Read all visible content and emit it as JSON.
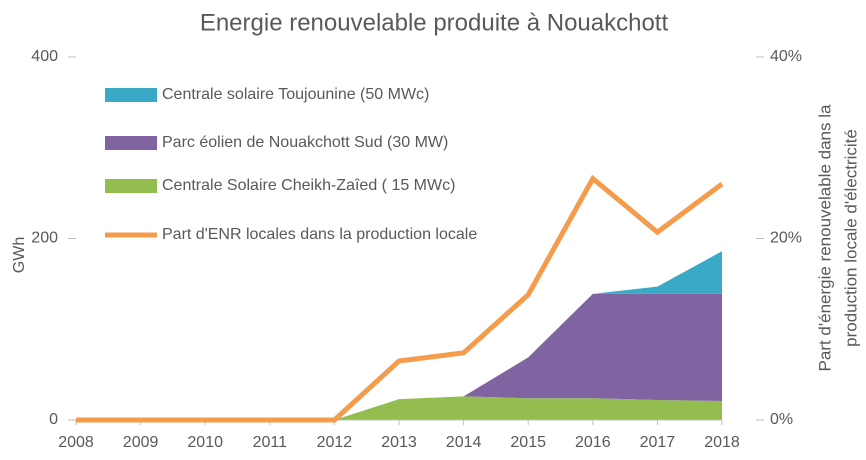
{
  "chart_data": {
    "type": "stacked_area_line",
    "title": "Energie renouvelable produite à Nouakchott",
    "ylabel": "GWh",
    "y2label": [
      "Part d'énergie renouvelable dans la",
      "production locale d'électricité"
    ],
    "x": [
      2008,
      2009,
      2010,
      2011,
      2012,
      2013,
      2014,
      2015,
      2016,
      2017,
      2018
    ],
    "xlim": [
      2008,
      2018
    ],
    "xticks": [
      2008,
      2009,
      2010,
      2011,
      2012,
      2013,
      2014,
      2015,
      2016,
      2017,
      2018
    ],
    "ylim": [
      0,
      400
    ],
    "yticks": [
      0,
      200,
      400
    ],
    "y2lim": [
      0,
      40
    ],
    "y2ticks": [
      {
        "value": 0,
        "label": "0%"
      },
      {
        "value": 20,
        "label": "20%"
      },
      {
        "value": 40,
        "label": "40%"
      }
    ],
    "series": [
      {
        "name": "Centrale solaire Toujounine (50 MWc)",
        "color": "#3aa9c6",
        "kind": "area",
        "values": [
          0,
          0,
          0,
          0,
          0,
          0,
          0,
          0,
          0,
          8,
          47
        ]
      },
      {
        "name": "Parc éolien de Nouakchott Sud  (30 MW)",
        "color": "#8064a2",
        "kind": "area",
        "values": [
          0,
          0,
          0,
          0,
          0,
          0,
          0,
          45,
          115,
          117,
          118
        ]
      },
      {
        "name": "Centrale Solaire Cheikh-Zaîed  ( 15 MWc)",
        "color": "#93bd4f",
        "kind": "area",
        "values": [
          0,
          0,
          0,
          0,
          0,
          23,
          26,
          24,
          24,
          22,
          21
        ]
      },
      {
        "name": "Part d'ENR locales dans la production locale",
        "color": "#f59c4c",
        "kind": "line",
        "axis": "y2",
        "values": [
          0,
          0,
          0,
          0,
          0,
          6.5,
          7.4,
          13.8,
          26.6,
          20.7,
          26.0
        ]
      }
    ]
  }
}
